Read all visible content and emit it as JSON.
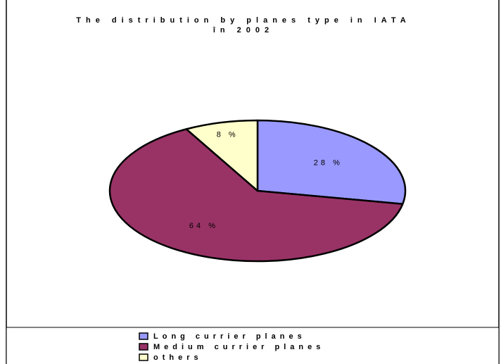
{
  "chart_data": {
    "type": "pie",
    "title": "The distribution by planes type in IATA în 2002",
    "categories": [
      "Long currier planes",
      "Medium currier planes",
      "others"
    ],
    "values": [
      28,
      64,
      8
    ],
    "value_labels": [
      "28 %",
      "64 %",
      "8 %"
    ],
    "colors": [
      "#9999ff",
      "#993366",
      "#ffffcc"
    ]
  }
}
